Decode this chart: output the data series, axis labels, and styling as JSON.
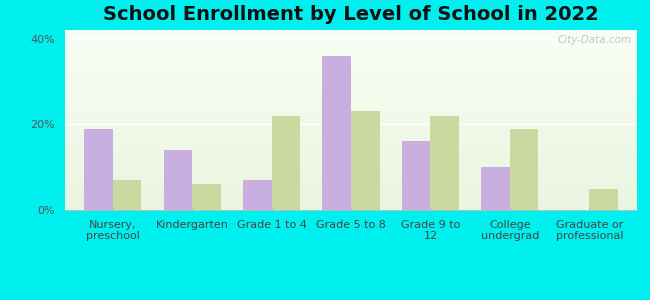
{
  "title": "School Enrollment by Level of School in 2022",
  "categories": [
    "Nursery,\npreschool",
    "Kindergarten",
    "Grade 1 to 4",
    "Grade 5 to 8",
    "Grade 9 to\n12",
    "College\nundergrad",
    "Graduate or\nprofessional"
  ],
  "zip_values": [
    19,
    14,
    7,
    36,
    16,
    10,
    0
  ],
  "ark_values": [
    7,
    6,
    22,
    23,
    22,
    19,
    5
  ],
  "zip_color": "#c9aee0",
  "ark_color": "#cad9a0",
  "background_outer": "#00efef",
  "background_inner_top": "#e8f5e0",
  "background_inner_bottom": "#f5fff5",
  "title_fontsize": 14,
  "tick_fontsize": 8,
  "legend_fontsize": 9.5,
  "ylim": [
    0,
    42
  ],
  "yticks": [
    0,
    20,
    40
  ],
  "ytick_labels": [
    "0%",
    "20%",
    "40%"
  ],
  "watermark": "City-Data.com"
}
